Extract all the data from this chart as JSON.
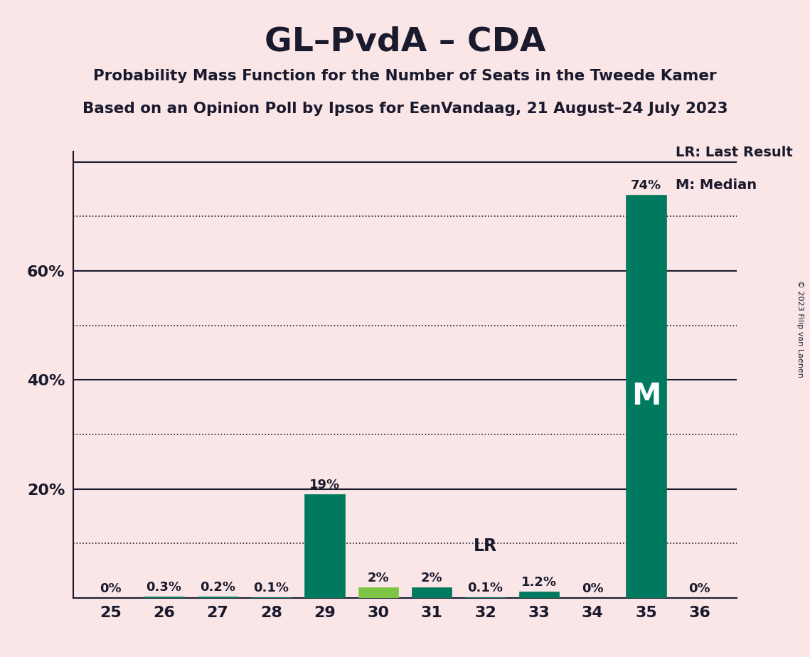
{
  "title": "GL–PvdA – CDA",
  "subtitle1": "Probability Mass Function for the Number of Seats in the Tweede Kamer",
  "subtitle2": "Based on an Opinion Poll by Ipsos for EenVandaag, 21 August–24 July 2023",
  "copyright": "© 2023 Filip van Laenen",
  "seats": [
    25,
    26,
    27,
    28,
    29,
    30,
    31,
    32,
    33,
    34,
    35,
    36
  ],
  "values": [
    0.0,
    0.3,
    0.2,
    0.1,
    19.0,
    2.0,
    2.0,
    0.1,
    1.2,
    0.0,
    74.0,
    0.0
  ],
  "bar_colors": [
    "#007A5E",
    "#007A5E",
    "#007A5E",
    "#007A5E",
    "#007A5E",
    "#7DC542",
    "#007A5E",
    "#007A5E",
    "#007A5E",
    "#007A5E",
    "#007A5E",
    "#007A5E"
  ],
  "lr_seat": 32,
  "median_seat": 35,
  "background_color": "#FAE6E6",
  "title_color": "#1A1A2E",
  "ylim": [
    0,
    82
  ],
  "legend_lr": "LR: Last Result",
  "legend_m": "M: Median",
  "value_labels": [
    "0%",
    "0.3%",
    "0.2%",
    "0.1%",
    "19%",
    "2%",
    "2%",
    "0.1%",
    "1.2%",
    "0%",
    "74%",
    "0%"
  ],
  "solid_hlines": [
    20,
    40,
    60,
    80
  ],
  "dotted_hlines": [
    10,
    30,
    50,
    70
  ]
}
